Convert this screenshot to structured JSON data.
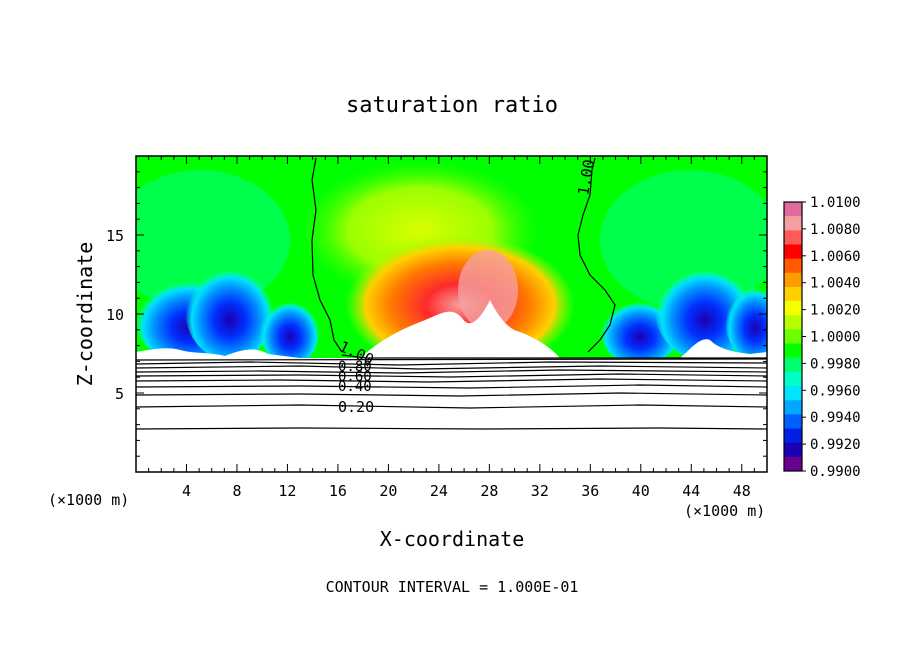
{
  "chart_data": {
    "type": "heatmap",
    "title": "saturation ratio",
    "xlabel": "X-coordinate",
    "ylabel": "Z-coordinate",
    "x_unit_label": "(×1000 m)",
    "z_unit_label": "(×1000 m)",
    "footer": "CONTOUR INTERVAL = 1.000E-01",
    "xlim": [
      0,
      50
    ],
    "ylim": [
      0,
      20
    ],
    "x_ticks": [
      4,
      8,
      12,
      16,
      20,
      24,
      28,
      32,
      36,
      40,
      44,
      48
    ],
    "y_ticks": [
      5,
      10,
      15
    ],
    "colorbar": {
      "min": 0.99,
      "max": 1.01,
      "tick_labels": [
        "1.0100",
        "1.0080",
        "1.0060",
        "1.0040",
        "1.0020",
        "1.0000",
        "0.9980",
        "0.9960",
        "0.9940",
        "0.9920",
        "0.9900"
      ],
      "colors": [
        "#e06aa0",
        "#f5a0a0",
        "#ff5a5a",
        "#ff0000",
        "#ff5a00",
        "#ff9a00",
        "#ffd000",
        "#f4ff00",
        "#b6ff00",
        "#6aff00",
        "#00ff00",
        "#00ff70",
        "#00ffc4",
        "#00e4ff",
        "#00a8ff",
        "#0060ff",
        "#0020e6",
        "#1a00b4",
        "#6a0090"
      ]
    },
    "contour_labels": [
      "1.00",
      "1.00",
      "0.80",
      "0.60",
      "0.40",
      "0.20"
    ],
    "grid": false
  }
}
